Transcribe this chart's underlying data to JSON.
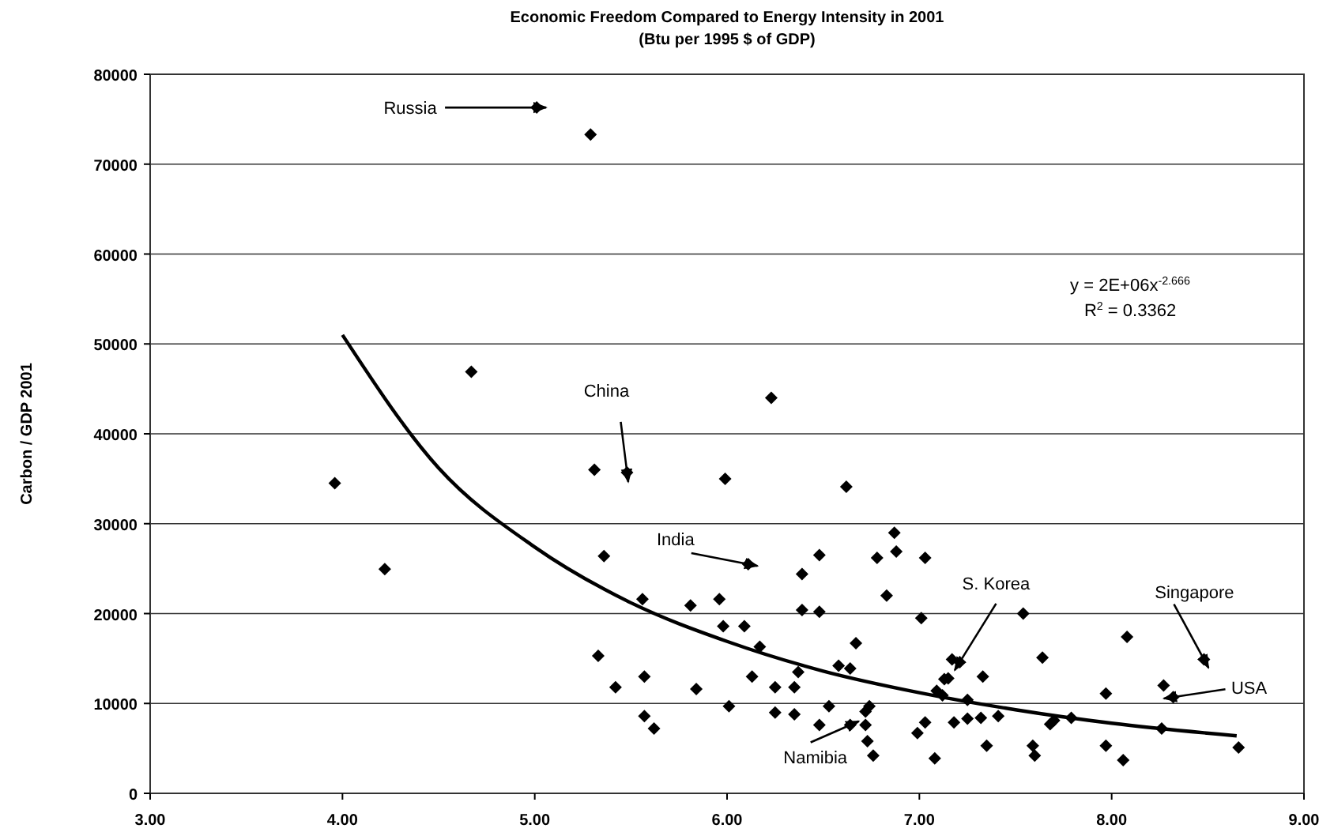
{
  "chart_data": {
    "type": "scatter",
    "title": "Economic Freedom Compared to Energy Intensity in 2001",
    "subtitle": "(Btu per 1995 $ of GDP)",
    "ylabel": "Carbon / GDP  2001",
    "xlim": [
      3,
      9
    ],
    "xticks": [
      {
        "value": 3,
        "label": "3.00"
      },
      {
        "value": 4,
        "label": "4.00"
      },
      {
        "value": 5,
        "label": "5.00"
      },
      {
        "value": 6,
        "label": "6.00"
      },
      {
        "value": 7,
        "label": "7.00"
      },
      {
        "value": 8,
        "label": "8.00"
      },
      {
        "value": 9,
        "label": "9.00"
      }
    ],
    "ylim": [
      0,
      80000
    ],
    "yticks": [
      0,
      10000,
      20000,
      30000,
      40000,
      50000,
      60000,
      70000,
      80000
    ],
    "grid": "y",
    "series": [
      {
        "color": "#000000",
        "marker": "diamond",
        "x": [
          5.01,
          5.29,
          4.67,
          6.23,
          3.96,
          4.22,
          5.31,
          5.48,
          5.99,
          5.36,
          6.11,
          6.39,
          5.56,
          5.81,
          5.96,
          5.98,
          6.09,
          6.39,
          6.17,
          5.33,
          5.42,
          5.57,
          5.84,
          6.13,
          6.25,
          6.35,
          6.01,
          6.25,
          6.35,
          5.57,
          5.62,
          6.37,
          6.62,
          6.87,
          6.88,
          6.78,
          7.03,
          6.48,
          6.48,
          6.83,
          7.01,
          7.54,
          6.67,
          8.08,
          8.48,
          7.64,
          7.17,
          7.21,
          7.33,
          6.58,
          6.64,
          7.13,
          7.15,
          7.09,
          7.12,
          8.27,
          8.32,
          7.97,
          7.25,
          6.53,
          6.74,
          6.72,
          6.48,
          6.64,
          6.72,
          6.73,
          6.76,
          6.99,
          7.03,
          7.18,
          7.25,
          7.32,
          7.41,
          7.35,
          7.08,
          7.59,
          7.6,
          7.68,
          7.7,
          7.79,
          7.97,
          8.06,
          8.26,
          8.66
        ],
        "values": [
          76300,
          73300,
          46900,
          44000,
          34500,
          24950,
          36000,
          35700,
          35000,
          26400,
          25500,
          24400,
          21600,
          20900,
          21600,
          18600,
          18600,
          20400,
          16300,
          15300,
          11800,
          13000,
          11600,
          13000,
          11800,
          11800,
          9700,
          9000,
          8800,
          8600,
          7200,
          13500,
          34100,
          29000,
          26900,
          26200,
          26200,
          26500,
          20200,
          22000,
          19500,
          20000,
          16700,
          17400,
          14900,
          15100,
          14900,
          14600,
          13000,
          14200,
          13900,
          12700,
          12800,
          11400,
          10900,
          12000,
          10700,
          11100,
          10400,
          9700,
          9700,
          9100,
          7600,
          7600,
          7600,
          5800,
          4200,
          6700,
          7900,
          7900,
          8300,
          8400,
          8600,
          5300,
          3900,
          5300,
          4200,
          7700,
          8100,
          8400,
          5300,
          3700,
          7200,
          5100
        ]
      },
      {
        "type": "line",
        "color": "#000000",
        "marker": "none",
        "line_style": "solid",
        "x": [
          4,
          4.5,
          5,
          5.5,
          6,
          6.5,
          7,
          7.5,
          8,
          8.65
        ],
        "values": [
          51000,
          36200,
          27400,
          21200,
          16900,
          13600,
          11200,
          9300,
          7800,
          6400
        ]
      }
    ],
    "annotations": [
      {
        "text": "Russia",
        "x": 5.01,
        "y": 76300
      },
      {
        "text": "China",
        "x": 5.48,
        "y": 35700
      },
      {
        "text": "India",
        "x": 6.11,
        "y": 25500
      },
      {
        "text": "S. Korea",
        "x": 7.21,
        "y": 14600
      },
      {
        "text": "Singapore",
        "x": 8.48,
        "y": 14900
      },
      {
        "text": "USA",
        "x": 8.32,
        "y": 10700
      },
      {
        "text": "Namibia",
        "x": 6.64,
        "y": 7600
      },
      "y = 2E+06x$^{-2.666}$",
      "R$^{2}$ = 0.3362"
    ]
  }
}
